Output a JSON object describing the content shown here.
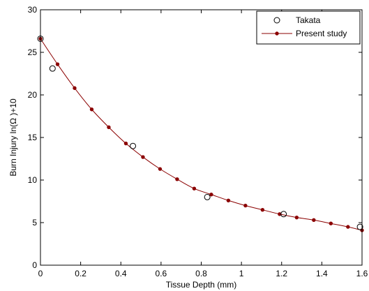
{
  "chart_data": {
    "type": "line",
    "xlabel": "Tissue Depth (mm)",
    "ylabel": "Burn Injury  ln(Ω )+10",
    "xlim": [
      0,
      1.6
    ],
    "ylim": [
      0,
      30
    ],
    "x_ticks": [
      0,
      0.2,
      0.4,
      0.6,
      0.8,
      1,
      1.2,
      1.4,
      1.6
    ],
    "x_tick_labels": [
      "0",
      "0.2",
      "0.4",
      "0.6",
      "0.8",
      "1",
      "1.2",
      "1.4",
      "1.6"
    ],
    "y_ticks": [
      0,
      5,
      10,
      15,
      20,
      25,
      30
    ],
    "y_tick_labels": [
      "0",
      "5",
      "10",
      "15",
      "20",
      "25",
      "30"
    ],
    "grid": false,
    "legend_position": "top-right",
    "series": [
      {
        "name": "Takata",
        "style": "markers",
        "marker": "open-circle",
        "color": "#000000",
        "x": [
          0.0,
          0.06,
          0.46,
          0.83,
          1.21,
          1.59
        ],
        "y": [
          26.6,
          23.1,
          14.0,
          8.0,
          6.0,
          4.5
        ]
      },
      {
        "name": "Present study",
        "style": "line-markers",
        "marker": "dot",
        "color": "#8b0000",
        "x": [
          0.0,
          0.085,
          0.17,
          0.255,
          0.34,
          0.425,
          0.51,
          0.595,
          0.68,
          0.765,
          0.85,
          0.935,
          1.02,
          1.105,
          1.19,
          1.275,
          1.36,
          1.445,
          1.53,
          1.6
        ],
        "y": [
          26.6,
          23.6,
          20.8,
          18.3,
          16.2,
          14.3,
          12.7,
          11.3,
          10.1,
          9.0,
          8.3,
          7.6,
          7.0,
          6.5,
          6.0,
          5.6,
          5.3,
          4.9,
          4.5,
          4.1
        ]
      }
    ]
  }
}
